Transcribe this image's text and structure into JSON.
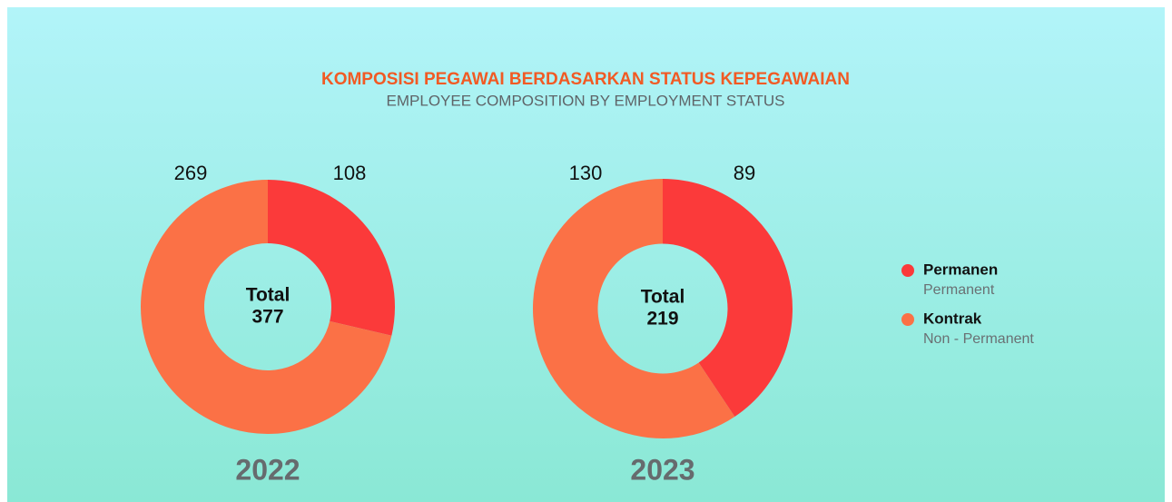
{
  "title": "KOMPOSISI PEGAWAI BERDASARKAN STATUS KEPEGAWAIAN",
  "subtitle": "EMPLOYEE COMPOSITION BY EMPLOYMENT STATUS",
  "legend_translations": [
    "Permanent",
    "Non - Permanent"
  ],
  "chart_data": [
    {
      "type": "donut",
      "title": "2022",
      "categories": [
        "Permanen",
        "Kontrak"
      ],
      "values": [
        108,
        269
      ],
      "colors": [
        "#fb3a3a",
        "#fb7146"
      ],
      "center_label": "Total",
      "total": 377
    },
    {
      "type": "donut",
      "title": "2023",
      "categories": [
        "Permanen",
        "Kontrak"
      ],
      "values": [
        89,
        130
      ],
      "colors": [
        "#fb3a3a",
        "#fb7146"
      ],
      "center_label": "Total",
      "total": 219
    }
  ]
}
